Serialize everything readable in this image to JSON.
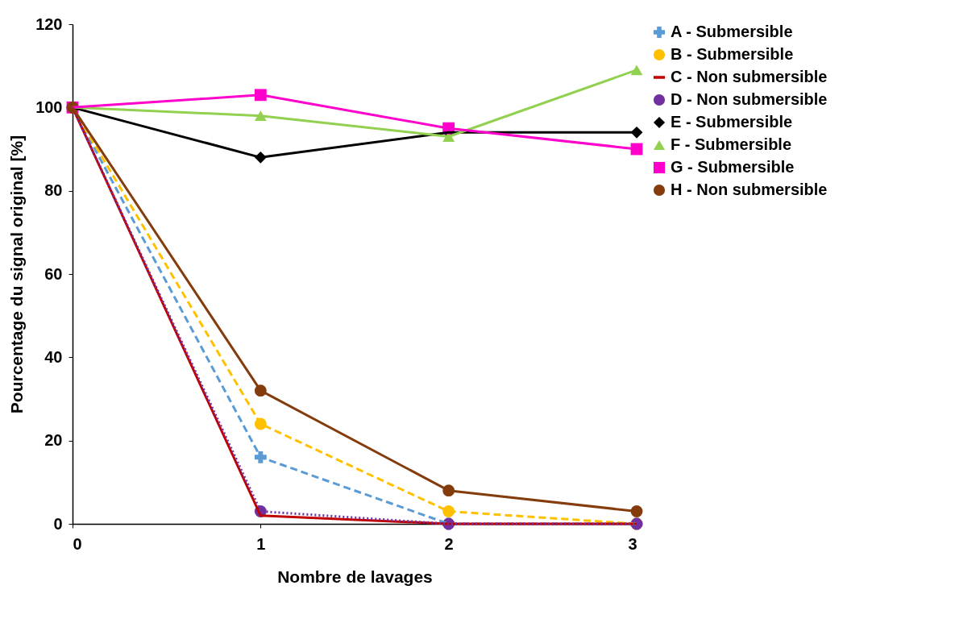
{
  "chart_data": {
    "type": "line",
    "xlabel": "Nombre de lavages",
    "ylabel": "Pourcentage du signal original [%]",
    "x": [
      0,
      1,
      2,
      3
    ],
    "xlim": [
      0,
      3
    ],
    "xticks": [
      0,
      1,
      2,
      3
    ],
    "ylim": [
      0,
      120
    ],
    "yticks": [
      0,
      20,
      40,
      60,
      80,
      100,
      120
    ],
    "grid": false,
    "legend": "right",
    "series": [
      {
        "name": "A - Submersible",
        "color": "#5b9bd5",
        "values": [
          100,
          16,
          0,
          0
        ],
        "marker": "cross",
        "line_style": "dashed"
      },
      {
        "name": "B - Submersible",
        "color": "#ffc000",
        "values": [
          100,
          24,
          3,
          0
        ],
        "marker": "circle",
        "line_style": "dashed"
      },
      {
        "name": "C - Non submersible",
        "color": "#c00000",
        "values": [
          100,
          2,
          0,
          0
        ],
        "marker": "none",
        "line_style": "solid"
      },
      {
        "name": "D - Non submersible",
        "color": "#7030a0",
        "values": [
          100,
          3,
          0,
          0
        ],
        "marker": "circle",
        "line_style": "dotted"
      },
      {
        "name": "E - Submersible",
        "color": "#000000",
        "values": [
          100,
          88,
          94,
          94
        ],
        "marker": "diamond",
        "line_style": "solid"
      },
      {
        "name": "F - Submersible",
        "color": "#92d050",
        "values": [
          100,
          98,
          93,
          109
        ],
        "marker": "triangle",
        "line_style": "solid"
      },
      {
        "name": "G - Submersible",
        "color": "#ff00cc",
        "values": [
          100,
          103,
          95,
          90
        ],
        "marker": "square",
        "line_style": "solid"
      },
      {
        "name": "H - Non submersible",
        "color": "#843c0c",
        "values": [
          100,
          32,
          8,
          3
        ],
        "marker": "circle",
        "line_style": "solid"
      }
    ]
  }
}
